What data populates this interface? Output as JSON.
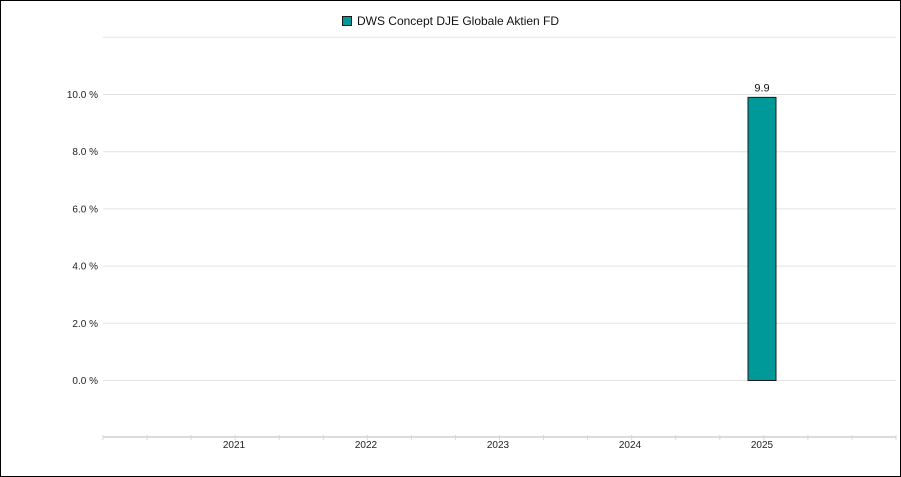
{
  "chart_data": {
    "type": "bar",
    "categories": [
      "2021",
      "2022",
      "2023",
      "2024",
      "2025"
    ],
    "series": [
      {
        "name": "DWS Concept DJE Globale Aktien FD",
        "color": "#009999",
        "values": [
          null,
          null,
          null,
          null,
          9.9
        ],
        "labels": [
          "",
          "",
          "",
          "",
          "9.9"
        ]
      }
    ],
    "y_ticks": [
      {
        "value": 0,
        "label": "0.0 %"
      },
      {
        "value": 2,
        "label": "2.0 %"
      },
      {
        "value": 4,
        "label": "4.0 %"
      },
      {
        "value": 6,
        "label": "6.0 %"
      },
      {
        "value": 8,
        "label": "8.0 %"
      },
      {
        "value": 10,
        "label": "10.0 %"
      }
    ],
    "ylim": [
      -2,
      12
    ],
    "grid": true,
    "legend_position": "top-center"
  }
}
